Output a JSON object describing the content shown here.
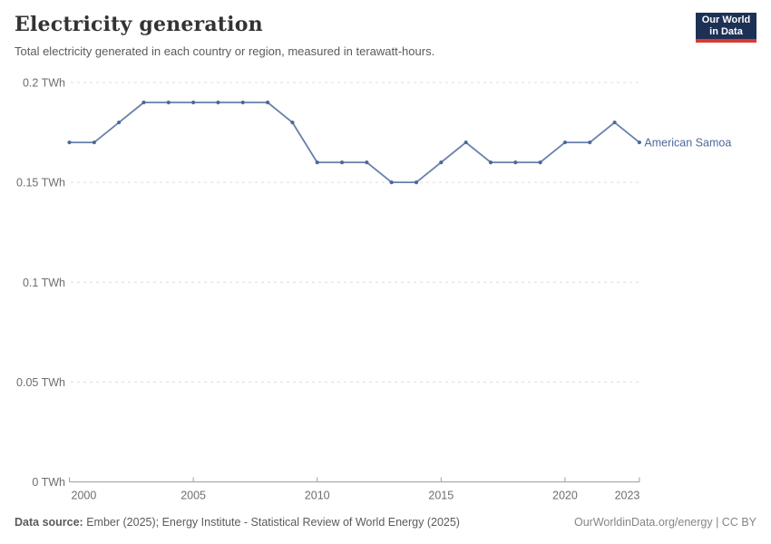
{
  "header": {
    "title": "Electricity generation",
    "subtitle": "Total electricity generated in each country or region, measured in terawatt-hours.",
    "logo": {
      "line1": "Our World",
      "line2": "in Data",
      "bg_color": "#1d3156",
      "bar_color": "#d93a34"
    }
  },
  "chart_data": {
    "type": "line",
    "title": "Electricity generation",
    "unit": "TWh",
    "grid": true,
    "legend_position": "end-of-line",
    "line_color": "#4c6a9c",
    "grid_color": "#dcdcdc",
    "axis_color": "#9e9e9e",
    "xlim": [
      2000,
      2023
    ],
    "ylim": [
      0,
      0.2
    ],
    "x": [
      2000,
      2001,
      2002,
      2003,
      2004,
      2005,
      2006,
      2007,
      2008,
      2009,
      2010,
      2011,
      2012,
      2013,
      2014,
      2015,
      2016,
      2017,
      2018,
      2019,
      2020,
      2021,
      2022,
      2023
    ],
    "series": [
      {
        "name": "American Samoa",
        "values": [
          0.17,
          0.17,
          0.18,
          0.19,
          0.19,
          0.19,
          0.19,
          0.19,
          0.19,
          0.18,
          0.16,
          0.16,
          0.16,
          0.15,
          0.15,
          0.16,
          0.17,
          0.16,
          0.16,
          0.16,
          0.17,
          0.17,
          0.18,
          0.17
        ]
      }
    ],
    "y_ticks": [
      {
        "value": 0,
        "label": "0 TWh"
      },
      {
        "value": 0.05,
        "label": "0.05 TWh"
      },
      {
        "value": 0.1,
        "label": "0.1 TWh"
      },
      {
        "value": 0.15,
        "label": "0.15 TWh"
      },
      {
        "value": 0.2,
        "label": "0.2 TWh"
      }
    ],
    "x_ticks": [
      {
        "value": 2000,
        "label": "2000"
      },
      {
        "value": 2005,
        "label": "2005"
      },
      {
        "value": 2010,
        "label": "2010"
      },
      {
        "value": 2015,
        "label": "2015"
      },
      {
        "value": 2020,
        "label": "2020"
      },
      {
        "value": 2023,
        "label": "2023"
      }
    ]
  },
  "footer": {
    "source_label": "Data source:",
    "source_text": " Ember (2025); Energy Institute - Statistical Review of World Energy (2025)",
    "rights": "OurWorldinData.org/energy | CC BY"
  }
}
